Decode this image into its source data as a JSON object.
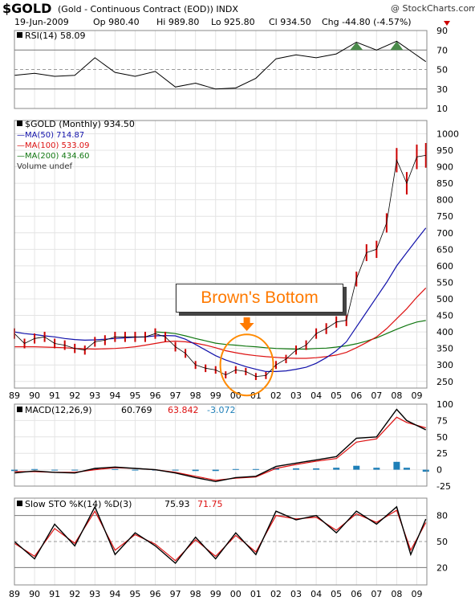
{
  "header": {
    "symbol": "$GOLD",
    "description": "(Gold - Continuous Contract (EOD)) INDX",
    "watermark": "@ StockCharts.com",
    "date": "19-Jun-2009",
    "op": "Op 980.40",
    "hi": "Hi 989.80",
    "lo": "Lo 925.80",
    "cl": "Cl 934.50",
    "chg": "Chg -44.80 (-4.57%)"
  },
  "annotation": {
    "text": "Brown's Bottom"
  },
  "colors": {
    "price": "#cc0000",
    "ma50": "#1111aa",
    "ma100": "#dd1111",
    "ma200": "#117711",
    "rsi_fill": "#4a8a4a",
    "macd_hist": "#1e7fb8",
    "watermark": "#333333",
    "callout_text": "#ff7a00",
    "circle": "#ff8a00",
    "arrow": "#ff7a00",
    "chg_down": "#cc0000"
  },
  "chart_data": [
    {
      "type": "line",
      "panel": "RSI",
      "legend": "RSI(14) 58.09",
      "ylim": [
        10,
        90
      ],
      "yticks": [
        10,
        30,
        50,
        70,
        90
      ],
      "reference_lines": [
        30,
        50,
        70
      ],
      "x": [
        1989,
        1990,
        1991,
        1992,
        1993,
        1994,
        1995,
        1996,
        1997,
        1998,
        1999,
        2000,
        2001,
        2002,
        2003,
        2004,
        2005,
        2006,
        2007,
        2008,
        2009.45
      ],
      "series": [
        {
          "name": "RSI(14)",
          "values": [
            44,
            46,
            43,
            44,
            62,
            47,
            43,
            48,
            32,
            36,
            30,
            31,
            41,
            61,
            65,
            62,
            66,
            78,
            70,
            79,
            58.09
          ]
        }
      ]
    },
    {
      "type": "line",
      "panel": "Price",
      "legend": [
        "$GOLD (Monthly) 934.50",
        "MA(50) 714.87",
        "MA(100) 533.09",
        "MA(200) 434.60",
        "Volume undef"
      ],
      "ylim": [
        230,
        1040
      ],
      "yticks": [
        250,
        300,
        350,
        400,
        450,
        500,
        550,
        600,
        650,
        700,
        750,
        800,
        850,
        900,
        950,
        1000
      ],
      "xlim": [
        1989,
        2009.5
      ],
      "xticks": [
        "89",
        "90",
        "91",
        "92",
        "93",
        "94",
        "95",
        "96",
        "97",
        "98",
        "99",
        "00",
        "01",
        "02",
        "03",
        "04",
        "05",
        "06",
        "07",
        "08",
        "09"
      ],
      "x": [
        1989,
        1989.5,
        1990,
        1990.5,
        1991,
        1991.5,
        1992,
        1992.5,
        1993,
        1993.5,
        1994,
        1994.5,
        1995,
        1995.5,
        1996,
        1996.5,
        1997,
        1997.5,
        1998,
        1998.5,
        1999,
        1999.5,
        2000,
        2000.5,
        2001,
        2001.5,
        2002,
        2002.5,
        2003,
        2003.5,
        2004,
        2004.5,
        2005,
        2005.5,
        2006,
        2006.5,
        2007,
        2007.5,
        2008,
        2008.5,
        2009,
        2009.45
      ],
      "series": [
        {
          "name": "$GOLD (Monthly)",
          "values": [
            395,
            365,
            380,
            385,
            365,
            360,
            350,
            345,
            370,
            375,
            385,
            385,
            385,
            385,
            395,
            385,
            355,
            335,
            300,
            290,
            285,
            270,
            285,
            280,
            265,
            268,
            300,
            318,
            345,
            360,
            395,
            410,
            430,
            435,
            560,
            640,
            650,
            730,
            920,
            850,
            930,
            934.5
          ]
        },
        {
          "name": "MA(50)",
          "values": [
            400,
            395,
            392,
            388,
            385,
            380,
            377,
            375,
            376,
            378,
            380,
            382,
            384,
            385,
            388,
            389,
            388,
            378,
            362,
            345,
            328,
            315,
            305,
            295,
            287,
            280,
            280,
            282,
            287,
            293,
            305,
            322,
            343,
            370,
            415,
            460,
            505,
            550,
            600,
            640,
            680,
            714.87
          ]
        },
        {
          "name": "MA(100)",
          "values": [
            355,
            355,
            355,
            354,
            353,
            352,
            350,
            349,
            348,
            349,
            350,
            352,
            355,
            360,
            365,
            370,
            372,
            370,
            366,
            360,
            352,
            343,
            337,
            332,
            328,
            325,
            323,
            321,
            320,
            320,
            322,
            325,
            330,
            338,
            352,
            368,
            385,
            410,
            440,
            470,
            505,
            533.09
          ]
        },
        {
          "name": "MA(200)",
          "values": [
            null,
            null,
            null,
            null,
            null,
            null,
            null,
            null,
            null,
            null,
            null,
            null,
            null,
            null,
            400,
            398,
            395,
            388,
            380,
            373,
            366,
            362,
            360,
            357,
            355,
            352,
            350,
            349,
            348,
            348,
            350,
            351,
            354,
            358,
            364,
            372,
            382,
            395,
            408,
            420,
            430,
            434.6
          ]
        }
      ]
    },
    {
      "type": "line",
      "panel": "MACD",
      "legend": [
        "MACD(12,26,9)",
        "60.769",
        "63.842",
        "-3.072"
      ],
      "ylim": [
        -25,
        100
      ],
      "yticks": [
        -25,
        0,
        25,
        50,
        75,
        100
      ],
      "x": [
        1989,
        1990,
        1991,
        1992,
        1993,
        1994,
        1995,
        1996,
        1997,
        1998,
        1999,
        2000,
        2001,
        2002,
        2003,
        2004,
        2005,
        2006,
        2007,
        2008,
        2008.5,
        2009.45
      ],
      "series": [
        {
          "name": "MACD",
          "values": [
            -5,
            -2,
            -4,
            -5,
            2,
            4,
            2,
            0,
            -5,
            -12,
            -18,
            -12,
            -10,
            5,
            10,
            15,
            20,
            48,
            50,
            92,
            75,
            60.769
          ]
        },
        {
          "name": "Signal",
          "values": [
            -3,
            -3,
            -4,
            -4,
            0,
            3,
            2,
            0,
            -4,
            -10,
            -16,
            -13,
            -11,
            2,
            8,
            13,
            17,
            42,
            47,
            80,
            72,
            63.842
          ]
        },
        {
          "name": "Histogram",
          "values": [
            -2,
            1,
            0,
            -1,
            2,
            1,
            0,
            0,
            -1,
            -2,
            -2,
            1,
            1,
            3,
            2,
            2,
            3,
            6,
            3,
            12,
            3,
            -3.072
          ]
        }
      ]
    },
    {
      "type": "line",
      "panel": "Slow STO",
      "legend": [
        "Slow STO %K(14) %D(3)",
        "75.93",
        "71.75"
      ],
      "ylim": [
        0,
        100
      ],
      "yticks": [
        20,
        50,
        80
      ],
      "reference_lines": [
        20,
        50,
        80
      ],
      "x": [
        1989,
        1990,
        1991,
        1992,
        1993,
        1994,
        1995,
        1996,
        1997,
        1998,
        1999,
        2000,
        2001,
        2002,
        2003,
        2004,
        2005,
        2006,
        2007,
        2008,
        2008.7,
        2009.45
      ],
      "series": [
        {
          "name": "%K",
          "values": [
            50,
            30,
            70,
            45,
            90,
            35,
            60,
            45,
            25,
            55,
            30,
            60,
            35,
            85,
            75,
            80,
            60,
            85,
            70,
            90,
            35,
            75.93
          ]
        },
        {
          "name": "%D",
          "values": [
            48,
            33,
            65,
            48,
            85,
            40,
            58,
            47,
            28,
            52,
            33,
            57,
            38,
            80,
            76,
            78,
            63,
            82,
            72,
            86,
            40,
            71.75
          ]
        }
      ]
    }
  ]
}
